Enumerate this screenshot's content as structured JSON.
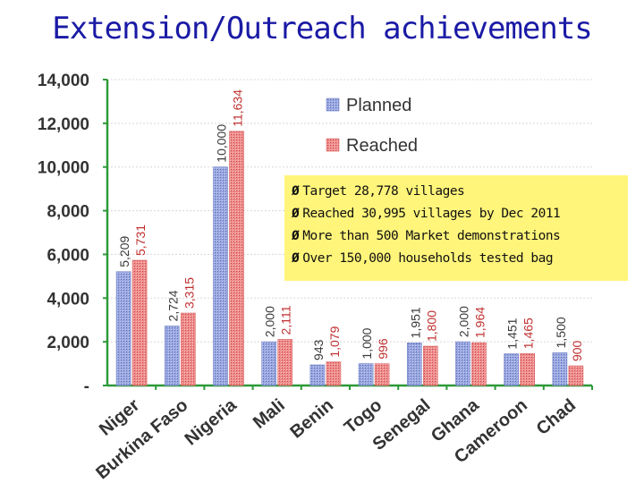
{
  "title": "Extension/Outreach achievements",
  "notes": [
    "Target 28,778 villages",
    "Reached 30,995 villages by Dec 2011",
    "More than 500 Market demonstrations",
    "Over 150,000 households tested bag"
  ],
  "bullet_glyph": "Ø",
  "colors": {
    "planned": "#7f8fd0",
    "reached": "#e47878",
    "planned_label": "#3a3a3a",
    "reached_label": "#c03030",
    "title": "#1a1aa6",
    "axis": "#2e9a3a"
  },
  "chart_data": {
    "type": "bar",
    "categories": [
      "Niger",
      "Burkina Faso",
      "Nigeria",
      "Mali",
      "Benin",
      "Togo",
      "Senegal",
      "Ghana",
      "Cameroon",
      "Chad"
    ],
    "series": [
      {
        "name": "Planned",
        "values": [
          5209,
          2724,
          10000,
          2000,
          943,
          1000,
          1951,
          2000,
          1451,
          1500
        ],
        "labels": [
          "5,209",
          "2,724",
          "10,000",
          "2,000",
          "943",
          "1,000",
          "1,951",
          "2,000",
          "1,451",
          "1,500"
        ]
      },
      {
        "name": "Reached",
        "values": [
          5731,
          3315,
          11634,
          2111,
          1079,
          996,
          1800,
          1964,
          1465,
          900
        ],
        "labels": [
          "5,731",
          "3,315",
          "11,634",
          "2,111",
          "1,079",
          "996",
          "1,800",
          "1,964",
          "1,465",
          "900"
        ]
      }
    ],
    "ylim": [
      0,
      14000
    ],
    "yticks": [
      0,
      2000,
      4000,
      6000,
      8000,
      10000,
      12000,
      14000
    ],
    "ytick_labels": [
      "-",
      "2,000",
      "4,000",
      "6,000",
      "8,000",
      "10,000",
      "12,000",
      "14,000"
    ],
    "grid": true,
    "legend_position": "top-right"
  }
}
